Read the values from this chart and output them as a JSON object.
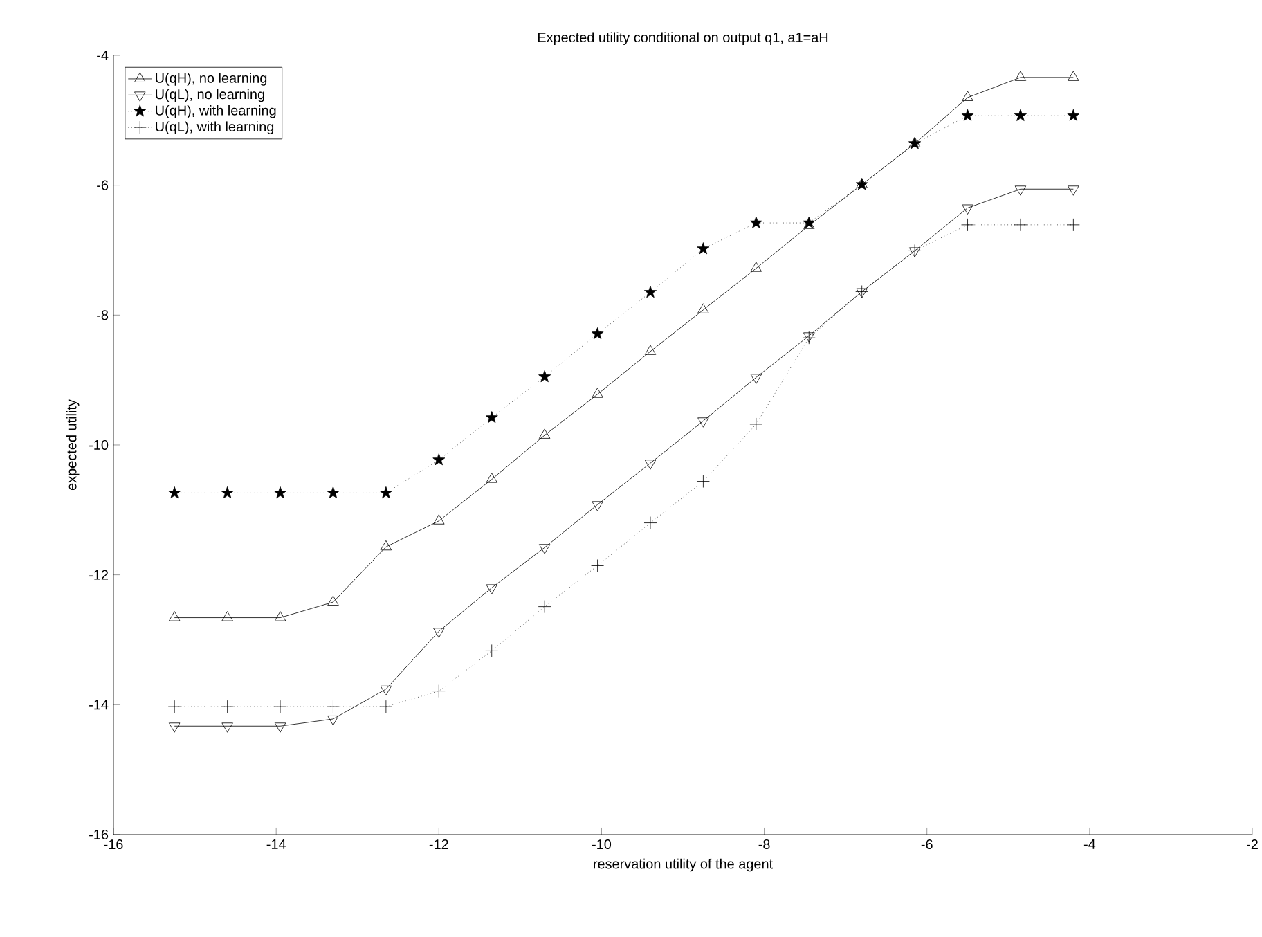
{
  "chart_data": {
    "type": "line",
    "title": "Expected utility conditional on output q1, a1=aH",
    "xlabel": "reservation utility of the agent",
    "ylabel": "expected utility",
    "x": [
      -15.25,
      -14.6,
      -13.95,
      -13.3,
      -12.65,
      -12.0,
      -11.35,
      -10.7,
      -10.05,
      -9.4,
      -8.75,
      -8.1,
      -7.45,
      -6.8,
      -6.15,
      -5.5,
      -4.85,
      -4.2
    ],
    "series": [
      {
        "name": "U(qH), no learning",
        "color": "#000000",
        "marker": "triangle",
        "line_style": "solid",
        "values": [
          -12.66,
          -12.66,
          -12.66,
          -12.42,
          -11.57,
          -11.17,
          -10.53,
          -9.85,
          -9.22,
          -8.56,
          -7.92,
          -7.28,
          -6.62,
          -5.99,
          -5.36,
          -4.65,
          -4.34,
          -4.34
        ]
      },
      {
        "name": "U(qL), no learning",
        "color": "#000000",
        "marker": "triangle_down",
        "line_style": "solid",
        "values": [
          -14.33,
          -14.33,
          -14.33,
          -14.22,
          -13.76,
          -12.87,
          -12.2,
          -11.58,
          -10.92,
          -10.28,
          -9.63,
          -8.96,
          -8.32,
          -7.64,
          -7.01,
          -6.35,
          -6.06,
          -6.06
        ]
      },
      {
        "name": "U(qH), with learning",
        "color": "#000000",
        "marker": "star",
        "line_style": "dotted",
        "values": [
          -10.74,
          -10.74,
          -10.74,
          -10.74,
          -10.74,
          -10.23,
          -9.58,
          -8.95,
          -8.29,
          -7.65,
          -6.98,
          -6.58,
          -6.58,
          -5.99,
          -5.36,
          -4.93,
          -4.93,
          -4.93
        ]
      },
      {
        "name": "U(qL), with learning",
        "color": "#000000",
        "marker": "cross",
        "line_style": "dotted",
        "values": [
          -14.03,
          -14.03,
          -14.03,
          -14.03,
          -14.03,
          -13.79,
          -13.17,
          -12.49,
          -11.86,
          -11.2,
          -10.56,
          -9.68,
          -8.35,
          -7.64,
          -7.01,
          -6.61,
          -6.61,
          -6.61
        ]
      }
    ],
    "xlim": [
      -16,
      -2
    ],
    "ylim": [
      -16,
      -4
    ],
    "xticks": [
      -16,
      -14,
      -12,
      -10,
      -8,
      -6,
      -4,
      -2
    ],
    "yticks": [
      -16,
      -14,
      -12,
      -10,
      -8,
      -6,
      -4
    ],
    "legend": "top left"
  }
}
